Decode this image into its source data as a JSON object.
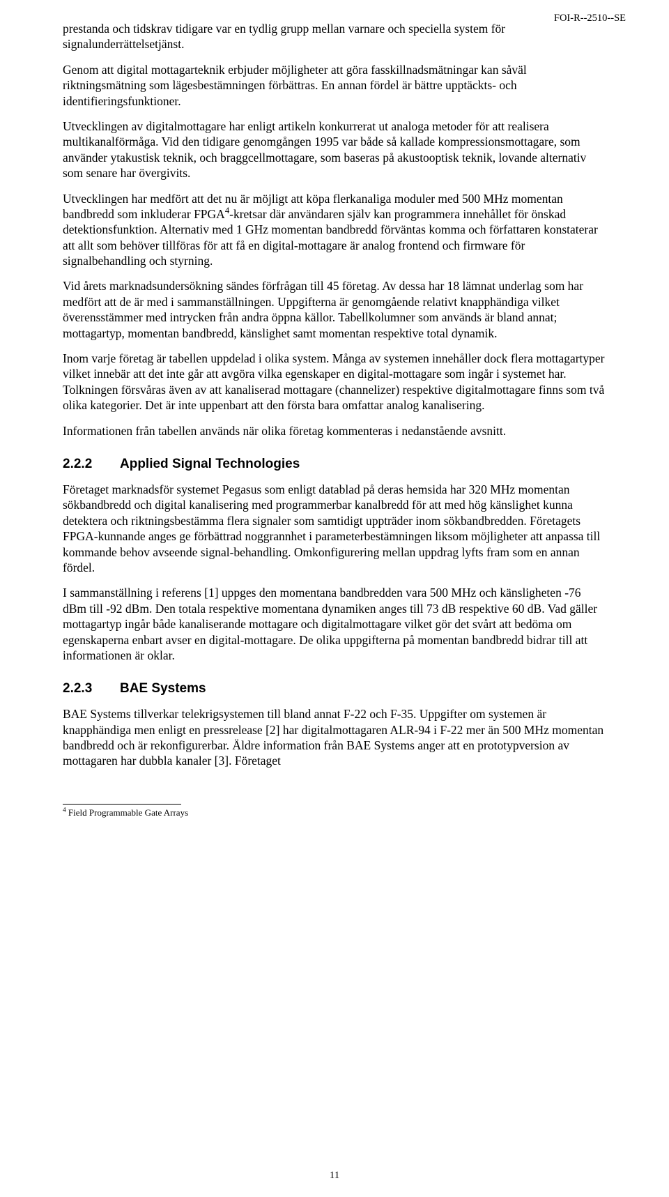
{
  "document_id": "FOI-R--2510--SE",
  "page_number": "11",
  "paragraphs": {
    "p1": "prestanda och tidskrav tidigare var en tydlig grupp mellan varnare och speciella system för signalunderrättelsetjänst.",
    "p2": "Genom att digital mottagarteknik erbjuder möjligheter att göra fasskillnadsmätningar kan såväl riktningsmätning som lägesbestämningen förbättras. En annan fördel är bättre upptäckts- och identifieringsfunktioner.",
    "p3": "Utvecklingen av digitalmottagare har enligt artikeln konkurrerat ut analoga metoder för att realisera multikanalförmåga. Vid den tidigare genomgången 1995 var både så kallade kompressionsmottagare, som använder ytakustisk teknik, och braggcellmottagare, som baseras på akustooptisk teknik, lovande alternativ som senare har övergivits.",
    "p4_pre": "Utvecklingen har medfört att det nu är möjligt att köpa flerkanaliga moduler med 500 MHz momentan bandbredd som inkluderar FPGA",
    "p4_sup": "4",
    "p4_post": "-kretsar där användaren själv kan programmera innehållet för önskad detektionsfunktion. Alternativ med 1 GHz momentan bandbredd förväntas komma och författaren konstaterar att allt som behöver tillföras för att få en digital-mottagare är analog frontend och firmware för signalbehandling och styrning.",
    "p5": "Vid årets marknadsundersökning sändes förfrågan till 45 företag. Av dessa har 18 lämnat underlag som har medfört att de är med i sammanställningen. Uppgifterna är genomgående relativt knapphändiga vilket överensstämmer med intrycken från andra öppna källor. Tabellkolumner som används är bland annat; mottagartyp, momentan bandbredd, känslighet samt momentan respektive total dynamik.",
    "p6": "Inom varje företag är tabellen uppdelad i olika system. Många av systemen innehåller dock flera mottagartyper vilket innebär att det inte går att avgöra vilka egenskaper en digital-mottagare som ingår i systemet har. Tolkningen försvåras även av att kanaliserad mottagare (channelizer) respektive digitalmottagare finns som två olika kategorier. Det är inte uppenbart att den första bara omfattar analog kanalisering.",
    "p7": "Informationen från tabellen används när olika företag kommenteras i nedanstående avsnitt."
  },
  "sections": {
    "s222_num": "2.2.2",
    "s222_title": "Applied Signal Technologies",
    "s222_p1": "Företaget marknadsför systemet Pegasus som enligt datablad på deras hemsida har 320 MHz momentan sökbandbredd och digital kanalisering med programmerbar kanalbredd för att med hög känslighet kunna detektera och riktningsbestämma flera signaler som samtidigt uppträder inom sökbandbredden. Företagets FPGA-kunnande anges ge förbättrad noggrannhet i parameterbestämningen liksom möjligheter att anpassa till kommande behov avseende signal-behandling. Omkonfigurering mellan uppdrag lyfts fram som en annan fördel.",
    "s222_p2": "I sammanställning i referens [1] uppges den momentana bandbredden vara 500 MHz och känsligheten -76 dBm till -92 dBm. Den totala respektive momentana dynamiken anges till 73 dB respektive 60 dB. Vad gäller mottagartyp ingår både kanaliserande mottagare och digitalmottagare vilket gör det svårt att bedöma om egenskaperna enbart avser en digital-mottagare. De olika uppgifterna på momentan bandbredd bidrar till att informationen är oklar.",
    "s223_num": "2.2.3",
    "s223_title": "BAE Systems",
    "s223_p1": "BAE Systems tillverkar telekrigsystemen till bland annat F-22 och F-35. Uppgifter om systemen är knapphändiga men enligt en pressrelease [2] har digitalmottagaren ALR-94 i F-22 mer än 500 MHz momentan bandbredd och är rekonfigurerbar. Äldre information från BAE Systems anger att en prototypversion av mottagaren har dubbla kanaler [3]. Företaget"
  },
  "footnote": {
    "marker": "4",
    "text": " Field Programmable Gate Arrays"
  }
}
